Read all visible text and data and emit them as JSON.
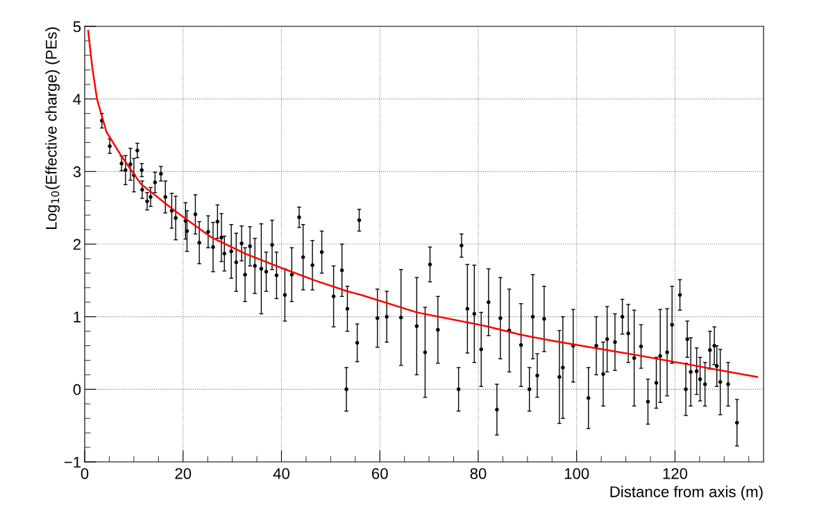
{
  "chart_data": {
    "type": "scatter",
    "xlabel": "Distance from axis (m)",
    "ylabel": "Log$_{10}$(Effective charge) (PEs)",
    "xlim": [
      0,
      138
    ],
    "ylim": [
      -1,
      5
    ],
    "xticks": [
      0,
      20,
      40,
      60,
      80,
      100,
      120
    ],
    "yticks": [
      {
        "value": -1,
        "label": "−1"
      },
      0,
      1,
      2,
      3,
      4,
      5
    ],
    "grid": true,
    "series": [
      {
        "color": "#000000",
        "marker": "circle",
        "x": [
          3.5,
          5.1,
          7.5,
          8.3,
          9.3,
          10.0,
          10.7,
          11.6,
          11.7,
          12.7,
          13.4,
          14.3,
          15.5,
          16.4,
          17.7,
          18.5,
          20.5,
          20.8,
          22.5,
          23.3,
          25.1,
          26.1,
          27.0,
          27.8,
          28.4,
          29.8,
          30.8,
          31.9,
          32.6,
          33.6,
          34.6,
          35.9,
          36.9,
          38.1,
          39.0,
          40.7,
          42.1,
          43.6,
          44.4,
          46.3,
          48.2,
          50.6,
          52.3,
          53.2,
          53.4,
          55.4,
          55.8,
          59.5,
          61.4,
          64.3,
          67.5,
          69.2,
          70.2,
          71.8,
          76.0,
          76.6,
          77.8,
          79.2,
          80.6,
          82.1,
          83.8,
          84.5,
          86.3,
          88.7,
          90.4,
          91.1,
          92.0,
          93.4,
          96.5,
          97.2,
          99.3,
          102.4,
          104.0,
          105.4,
          106.2,
          107.8,
          109.3,
          110.5,
          111.7,
          113.1,
          114.5,
          116.2,
          117.0,
          118.4,
          119.4,
          121.0,
          122.2,
          122.5,
          123.2,
          124.4,
          125.1,
          126.1,
          127.1,
          128.0,
          128.5,
          129.2,
          130.8,
          132.6
        ],
        "values": [
          3.7,
          3.35,
          3.11,
          3.02,
          3.1,
          2.95,
          3.29,
          3.02,
          2.75,
          2.59,
          2.65,
          2.85,
          2.97,
          2.65,
          2.46,
          2.36,
          2.32,
          2.18,
          2.41,
          2.02,
          2.17,
          1.96,
          2.31,
          2.09,
          1.87,
          1.9,
          1.75,
          2.01,
          1.58,
          1.97,
          1.7,
          1.66,
          1.62,
          1.99,
          1.57,
          1.3,
          1.58,
          2.37,
          1.82,
          1.71,
          1.89,
          1.28,
          1.64,
          0.0,
          1.11,
          0.64,
          2.33,
          0.98,
          1.0,
          0.99,
          0.87,
          0.51,
          1.72,
          0.82,
          0.0,
          1.98,
          1.11,
          1.04,
          0.55,
          1.2,
          -0.28,
          0.98,
          0.81,
          0.61,
          0.0,
          1.0,
          0.19,
          0.97,
          0.17,
          0.3,
          0.6,
          -0.12,
          0.6,
          0.21,
          0.69,
          0.65,
          1.0,
          0.77,
          0.43,
          0.59,
          -0.17,
          0.09,
          0.46,
          0.51,
          0.89,
          1.3,
          0.0,
          0.69,
          0.24,
          0.25,
          0.14,
          0.07,
          0.54,
          0.6,
          0.32,
          0.1,
          0.07,
          -0.46
        ],
        "errors": [
          0.1,
          0.1,
          0.1,
          0.2,
          0.22,
          0.23,
          0.1,
          0.09,
          0.12,
          0.12,
          0.13,
          0.14,
          0.1,
          0.22,
          0.24,
          0.3,
          0.25,
          0.28,
          0.27,
          0.29,
          0.22,
          0.34,
          0.23,
          0.33,
          0.24,
          0.37,
          0.4,
          0.24,
          0.37,
          0.27,
          0.38,
          0.62,
          0.27,
          0.34,
          0.32,
          0.36,
          0.37,
          0.14,
          0.45,
          0.34,
          0.29,
          0.42,
          0.36,
          0.3,
          0.31,
          0.26,
          0.15,
          0.4,
          0.35,
          0.66,
          0.67,
          0.62,
          0.24,
          0.46,
          0.3,
          0.16,
          0.61,
          0.67,
          0.51,
          0.46,
          0.35,
          0.56,
          0.57,
          0.57,
          0.3,
          0.58,
          0.3,
          0.45,
          0.64,
          0.7,
          0.5,
          0.42,
          0.4,
          0.44,
          0.45,
          0.39,
          0.24,
          0.4,
          0.66,
          0.3,
          0.31,
          0.35,
          0.64,
          0.6,
          0.53,
          0.21,
          0.36,
          0.25,
          0.47,
          0.32,
          0.3,
          0.3,
          0.26,
          0.26,
          0.28,
          0.45,
          0.3,
          0.32
        ]
      },
      {
        "type": "line",
        "color": "#ff0000",
        "x": [
          0.7,
          1.55,
          2.5,
          4.4,
          7.2,
          11.4,
          18.5,
          25.6,
          32.6,
          39.7,
          46.8,
          53.4,
          56.2,
          67.5,
          81.6,
          88.7,
          95.8,
          112.3,
          136.7
        ],
        "values": [
          4.94,
          4.43,
          4.0,
          3.55,
          3.24,
          2.83,
          2.45,
          2.1,
          1.87,
          1.68,
          1.5,
          1.35,
          1.3,
          1.06,
          0.87,
          0.75,
          0.66,
          0.47,
          0.17
        ]
      }
    ]
  }
}
